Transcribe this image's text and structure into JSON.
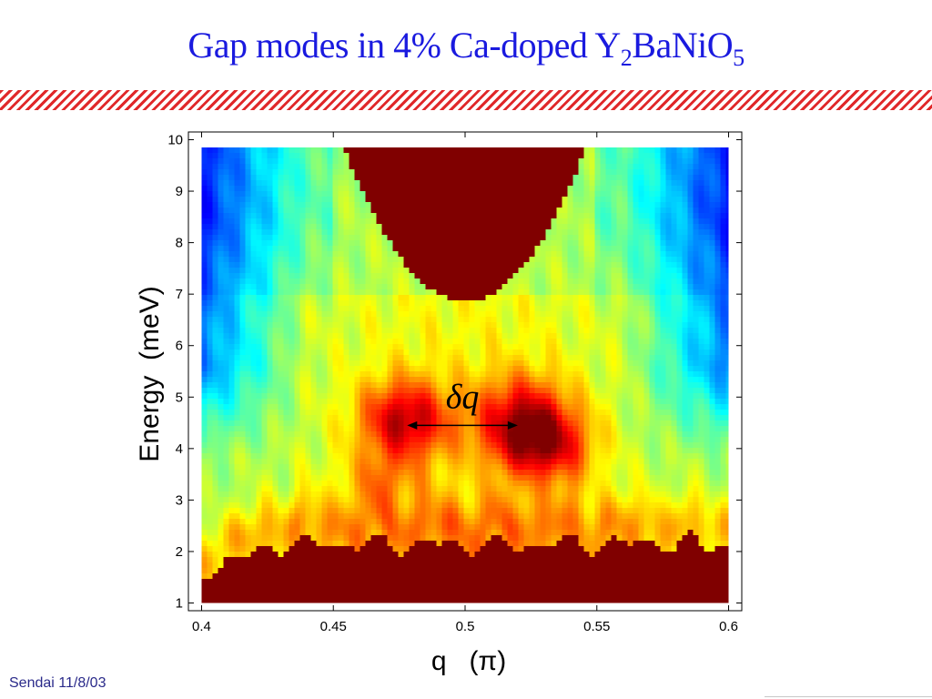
{
  "slide": {
    "title_main": "Gap modes in 4% Ca-doped Y",
    "title_sub1": "2",
    "title_mid": "BaNiO",
    "title_sub2": "5",
    "footer": "Sendai 11/8/03"
  },
  "chart_data": {
    "type": "heatmap",
    "title": "",
    "xlabel": "q   (π)",
    "ylabel": "Energy  (meV)",
    "xlim": [
      0.395,
      0.605
    ],
    "ylim": [
      0.85,
      10.15
    ],
    "data_extent_x": [
      0.4,
      0.6
    ],
    "data_extent_y": [
      1.0,
      9.85
    ],
    "x_ticks": [
      0.4,
      0.45,
      0.5,
      0.55,
      0.6
    ],
    "x_tick_labels": [
      "0.4",
      "0.45",
      "0.5",
      "0.55",
      "0.6"
    ],
    "y_ticks": [
      1,
      2,
      3,
      4,
      5,
      6,
      7,
      8,
      9,
      10
    ],
    "y_tick_labels": [
      "1",
      "2",
      "3",
      "4",
      "5",
      "6",
      "7",
      "8",
      "9",
      "10"
    ],
    "colormap": "jet",
    "intensity_range": [
      0,
      1
    ],
    "features": [
      {
        "name": "low-energy band",
        "q_range": [
          0.4,
          0.6
        ],
        "energy_range": [
          1.0,
          2.3
        ]
      },
      {
        "name": "high-energy region",
        "q_range": [
          0.452,
          0.544
        ],
        "energy_range": [
          6.9,
          9.85
        ],
        "center_q": 0.498
      },
      {
        "name": "gap mode peak left",
        "q": 0.477,
        "energy": 4.6
      },
      {
        "name": "gap mode peak right",
        "q": 0.522,
        "energy": 4.6
      }
    ],
    "annotations": [
      {
        "text": "δq",
        "q": 0.499,
        "energy": 5.0
      },
      {
        "type": "double-arrow",
        "q_from": 0.478,
        "q_to": 0.52,
        "energy": 4.45
      }
    ]
  },
  "colors": {
    "title": "#1a1adf",
    "stripe": "#e0282a",
    "footer": "#2a2a8a",
    "axes": "#000000"
  }
}
